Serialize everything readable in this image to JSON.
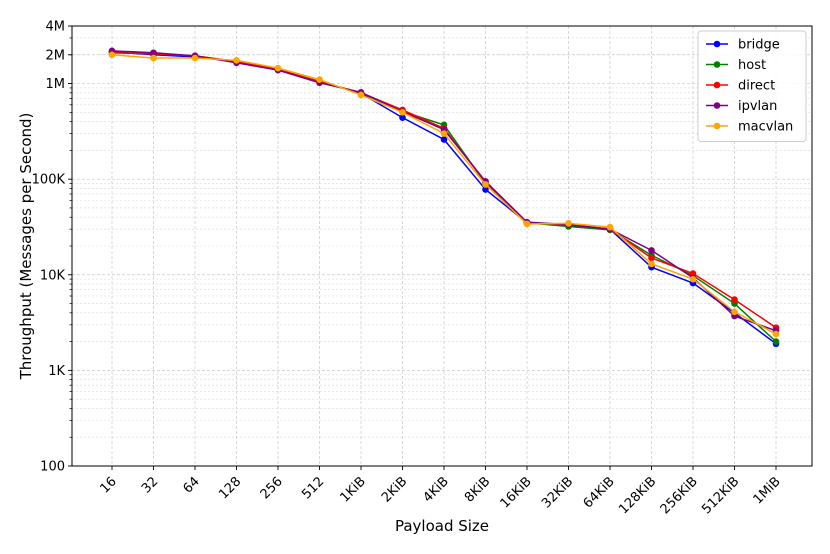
{
  "chart_data": {
    "type": "line",
    "title": "",
    "xlabel": "Payload Size",
    "ylabel": "Throughput (Messages per Second)",
    "y_scale": "log",
    "ylim": [
      100,
      4000000
    ],
    "grid": true,
    "legend_position": "top-right",
    "categories": [
      "16",
      "32",
      "64",
      "128",
      "256",
      "512",
      "1KiB",
      "2KiB",
      "4KiB",
      "8KiB",
      "16KiB",
      "32KiB",
      "64KiB",
      "128KiB",
      "256KiB",
      "512KiB",
      "1MiB"
    ],
    "y_ticks": [
      {
        "value": 100,
        "label": "100"
      },
      {
        "value": 1000,
        "label": "1K"
      },
      {
        "value": 10000,
        "label": "10K"
      },
      {
        "value": 100000,
        "label": "100K"
      },
      {
        "value": 1000000,
        "label": "1M"
      },
      {
        "value": 2000000,
        "label": "2M"
      },
      {
        "value": 4000000,
        "label": "4M"
      }
    ],
    "series": [
      {
        "name": "bridge",
        "color": "#0000ff",
        "values": [
          2150000,
          2000000,
          1900000,
          1700000,
          1400000,
          1050000,
          790000,
          440000,
          260000,
          78000,
          35000,
          33000,
          30000,
          12000,
          8200,
          4000,
          1900
        ]
      },
      {
        "name": "host",
        "color": "#008000",
        "values": [
          2100000,
          2050000,
          1950000,
          1700000,
          1400000,
          1050000,
          800000,
          510000,
          370000,
          90000,
          35000,
          32000,
          29500,
          16000,
          9800,
          5000,
          2000
        ]
      },
      {
        "name": "direct",
        "color": "#ff0000",
        "values": [
          2100000,
          2050000,
          1950000,
          1700000,
          1400000,
          1050000,
          800000,
          530000,
          340000,
          93000,
          35000,
          33500,
          30000,
          15000,
          10300,
          5500,
          2800
        ]
      },
      {
        "name": "ipvlan",
        "color": "#800080",
        "values": [
          2200000,
          2100000,
          1950000,
          1650000,
          1380000,
          1020000,
          810000,
          510000,
          330000,
          95000,
          35500,
          33500,
          30000,
          18000,
          9300,
          3700,
          2600
        ]
      },
      {
        "name": "macvlan",
        "color": "#ffa500",
        "values": [
          2000000,
          1850000,
          1850000,
          1750000,
          1450000,
          1100000,
          760000,
          500000,
          300000,
          88000,
          34000,
          34500,
          31500,
          13000,
          9000,
          4100,
          2400
        ]
      }
    ]
  }
}
